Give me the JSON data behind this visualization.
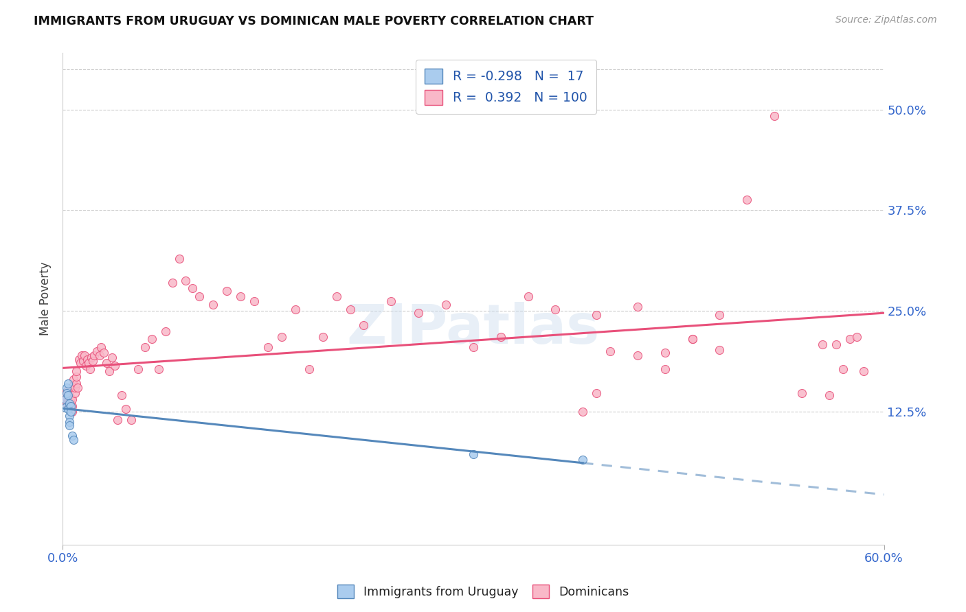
{
  "title": "IMMIGRANTS FROM URUGUAY VS DOMINICAN MALE POVERTY CORRELATION CHART",
  "source": "Source: ZipAtlas.com",
  "ylabel": "Male Poverty",
  "ytick_labels": [
    "12.5%",
    "25.0%",
    "37.5%",
    "50.0%"
  ],
  "ytick_values": [
    0.125,
    0.25,
    0.375,
    0.5
  ],
  "xlim": [
    0.0,
    0.6
  ],
  "ylim": [
    -0.04,
    0.57
  ],
  "legend_R_uruguay": "-0.298",
  "legend_N_uruguay": "17",
  "legend_R_dominican": "0.392",
  "legend_N_dominican": "100",
  "color_uruguay": "#aaccee",
  "color_dominican": "#f9b8c8",
  "line_color_uruguay": "#5588bb",
  "line_color_dominican": "#e8507a",
  "watermark": "ZIPatlas",
  "background_color": "#ffffff",
  "uruguay_x": [
    0.002,
    0.002,
    0.003,
    0.003,
    0.004,
    0.004,
    0.004,
    0.005,
    0.005,
    0.005,
    0.005,
    0.006,
    0.006,
    0.007,
    0.008,
    0.3,
    0.38
  ],
  "uruguay_y": [
    0.14,
    0.13,
    0.155,
    0.148,
    0.16,
    0.145,
    0.128,
    0.135,
    0.12,
    0.112,
    0.108,
    0.132,
    0.125,
    0.095,
    0.09,
    0.072,
    0.065
  ],
  "dominican_x": [
    0.002,
    0.002,
    0.003,
    0.003,
    0.003,
    0.004,
    0.004,
    0.004,
    0.005,
    0.005,
    0.005,
    0.006,
    0.006,
    0.006,
    0.007,
    0.007,
    0.007,
    0.008,
    0.008,
    0.009,
    0.009,
    0.01,
    0.01,
    0.01,
    0.011,
    0.012,
    0.013,
    0.014,
    0.015,
    0.016,
    0.017,
    0.018,
    0.019,
    0.02,
    0.021,
    0.022,
    0.023,
    0.025,
    0.027,
    0.028,
    0.03,
    0.032,
    0.034,
    0.036,
    0.038,
    0.04,
    0.043,
    0.046,
    0.05,
    0.055,
    0.06,
    0.065,
    0.07,
    0.075,
    0.08,
    0.085,
    0.09,
    0.095,
    0.1,
    0.11,
    0.12,
    0.13,
    0.14,
    0.15,
    0.16,
    0.17,
    0.18,
    0.19,
    0.2,
    0.21,
    0.22,
    0.24,
    0.26,
    0.28,
    0.3,
    0.32,
    0.34,
    0.36,
    0.38,
    0.39,
    0.4,
    0.42,
    0.44,
    0.46,
    0.48,
    0.5,
    0.52,
    0.54,
    0.555,
    0.56,
    0.565,
    0.57,
    0.575,
    0.58,
    0.585,
    0.39,
    0.42,
    0.44,
    0.46,
    0.48
  ],
  "dominican_y": [
    0.14,
    0.145,
    0.135,
    0.142,
    0.15,
    0.138,
    0.145,
    0.152,
    0.132,
    0.138,
    0.145,
    0.128,
    0.135,
    0.142,
    0.125,
    0.132,
    0.14,
    0.158,
    0.165,
    0.148,
    0.155,
    0.16,
    0.168,
    0.175,
    0.155,
    0.19,
    0.185,
    0.195,
    0.188,
    0.195,
    0.182,
    0.19,
    0.185,
    0.178,
    0.192,
    0.188,
    0.195,
    0.2,
    0.195,
    0.205,
    0.198,
    0.185,
    0.175,
    0.192,
    0.182,
    0.115,
    0.145,
    0.128,
    0.115,
    0.178,
    0.205,
    0.215,
    0.178,
    0.225,
    0.285,
    0.315,
    0.288,
    0.278,
    0.268,
    0.258,
    0.275,
    0.268,
    0.262,
    0.205,
    0.218,
    0.252,
    0.178,
    0.218,
    0.268,
    0.252,
    0.232,
    0.262,
    0.248,
    0.258,
    0.205,
    0.218,
    0.268,
    0.252,
    0.125,
    0.148,
    0.2,
    0.255,
    0.198,
    0.215,
    0.202,
    0.388,
    0.492,
    0.148,
    0.208,
    0.145,
    0.208,
    0.178,
    0.215,
    0.218,
    0.175,
    0.245,
    0.195,
    0.178,
    0.215,
    0.245
  ]
}
